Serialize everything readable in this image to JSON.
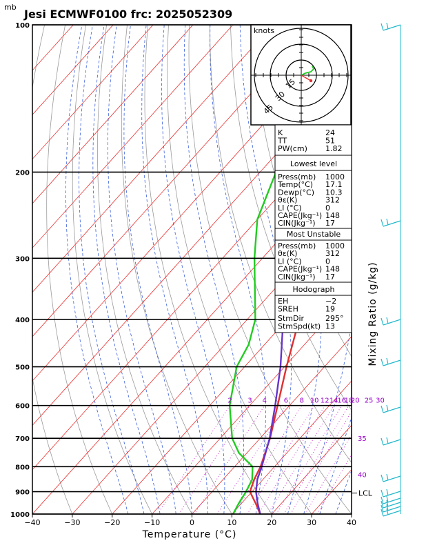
{
  "chart_data": {
    "type": "line",
    "title": "Jesi ECMWF0100 frc: 2025052309",
    "pressure_unit_label": "mb",
    "xlabel": "Temperature (°C)",
    "right_label": "Mixing Ratio (g/kg)",
    "xlim": [
      -40,
      40
    ],
    "ylim": [
      1000,
      100
    ],
    "x_ticks": [
      "−40",
      "−30",
      "−20",
      "−10",
      "0",
      "10",
      "20",
      "30",
      "40"
    ],
    "pressure_levels": [
      1000,
      900,
      800,
      700,
      600,
      500,
      400,
      300,
      200,
      100
    ],
    "series": [
      {
        "role": "temperature",
        "color": "#e03030",
        "points": [
          [
            1000,
            17.1
          ],
          [
            950,
            13.5
          ],
          [
            925,
            11.5
          ],
          [
            900,
            9.5
          ],
          [
            850,
            7.8
          ],
          [
            800,
            6.5
          ],
          [
            700,
            2.5
          ],
          [
            600,
            -3
          ],
          [
            500,
            -9.5
          ],
          [
            400,
            -17
          ],
          [
            300,
            -27
          ],
          [
            250,
            -33
          ],
          [
            200,
            -36
          ],
          [
            150,
            -38
          ],
          [
            100,
            -40
          ]
        ]
      },
      {
        "role": "dewpoint",
        "color": "#22cc22",
        "points": [
          [
            1000,
            10.3
          ],
          [
            950,
            9.3
          ],
          [
            900,
            8.5
          ],
          [
            850,
            7.3
          ],
          [
            800,
            4.5
          ],
          [
            750,
            -2
          ],
          [
            700,
            -7
          ],
          [
            600,
            -15
          ],
          [
            500,
            -22
          ],
          [
            450,
            -24
          ],
          [
            400,
            -28
          ],
          [
            300,
            -42
          ],
          [
            250,
            -50
          ],
          [
            200,
            -56
          ],
          [
            150,
            -63
          ],
          [
            100,
            -70
          ]
        ]
      },
      {
        "role": "parcel",
        "color": "#6633cc",
        "points": [
          [
            1000,
            17.1
          ],
          [
            950,
            14
          ],
          [
            900,
            11
          ],
          [
            850,
            8.6
          ],
          [
            800,
            6.8
          ],
          [
            700,
            2.4
          ],
          [
            600,
            -3.6
          ],
          [
            500,
            -11
          ],
          [
            400,
            -21
          ],
          [
            300,
            -35
          ],
          [
            250,
            -44
          ],
          [
            200,
            -54
          ],
          [
            150,
            -66
          ],
          [
            100,
            -82
          ]
        ]
      }
    ],
    "mixing_ratio_labels": [
      "2",
      "3",
      "4",
      "6",
      "8",
      "10",
      "12",
      "14",
      "16",
      "18",
      "20",
      "25",
      "30"
    ],
    "theta_e_labels": [
      "35",
      "40"
    ],
    "lcl_label": "LCL",
    "hodograph": {
      "unit_label": "knots",
      "ring_labels": [
        "15",
        "30",
        "45"
      ]
    },
    "indices_block": [
      {
        "label": "K",
        "value": "24"
      },
      {
        "label": "TT",
        "value": "51"
      },
      {
        "label": "PW(cm)",
        "value": "1.82"
      }
    ],
    "lowest_level": {
      "header": "Lowest level",
      "rows": [
        {
          "label": "Press(mb)",
          "value": "1000"
        },
        {
          "label": "Temp(°C)",
          "value": "17.1"
        },
        {
          "label": "Dewp(°C)",
          "value": "10.3"
        },
        {
          "label": "θε(K)",
          "value": "312"
        },
        {
          "label": "LI (°C)",
          "value": "0"
        },
        {
          "label": "CAPE(Jkg⁻¹)",
          "value": "148"
        },
        {
          "label": "CIN(Jkg⁻¹)",
          "value": "17"
        }
      ]
    },
    "most_unstable": {
      "header": "Most Unstable",
      "rows": [
        {
          "label": "Press(mb)",
          "value": "1000"
        },
        {
          "label": "θε(K)",
          "value": "312"
        },
        {
          "label": "LI (°C)",
          "value": "0"
        },
        {
          "label": "CAPE(Jkg⁻¹)",
          "value": "148"
        },
        {
          "label": "CIN(Jkg⁻¹)",
          "value": "17"
        }
      ]
    },
    "hodograph_block": {
      "header": "Hodograph",
      "rows": [
        {
          "label": "EH",
          "value": "−2"
        },
        {
          "label": "SREH",
          "value": "19"
        },
        {
          "label": "StmDir",
          "value": "295°"
        },
        {
          "label": "StmSpd(kt)",
          "value": "13"
        }
      ]
    },
    "colors": {
      "isotherm": "#e83030",
      "dry_adiabat": "#9a9a9a",
      "moist_adiabat": "#3a5fd8",
      "mixing_ratio": "#cc33cc",
      "wind_barb": "#22b8cc"
    }
  }
}
